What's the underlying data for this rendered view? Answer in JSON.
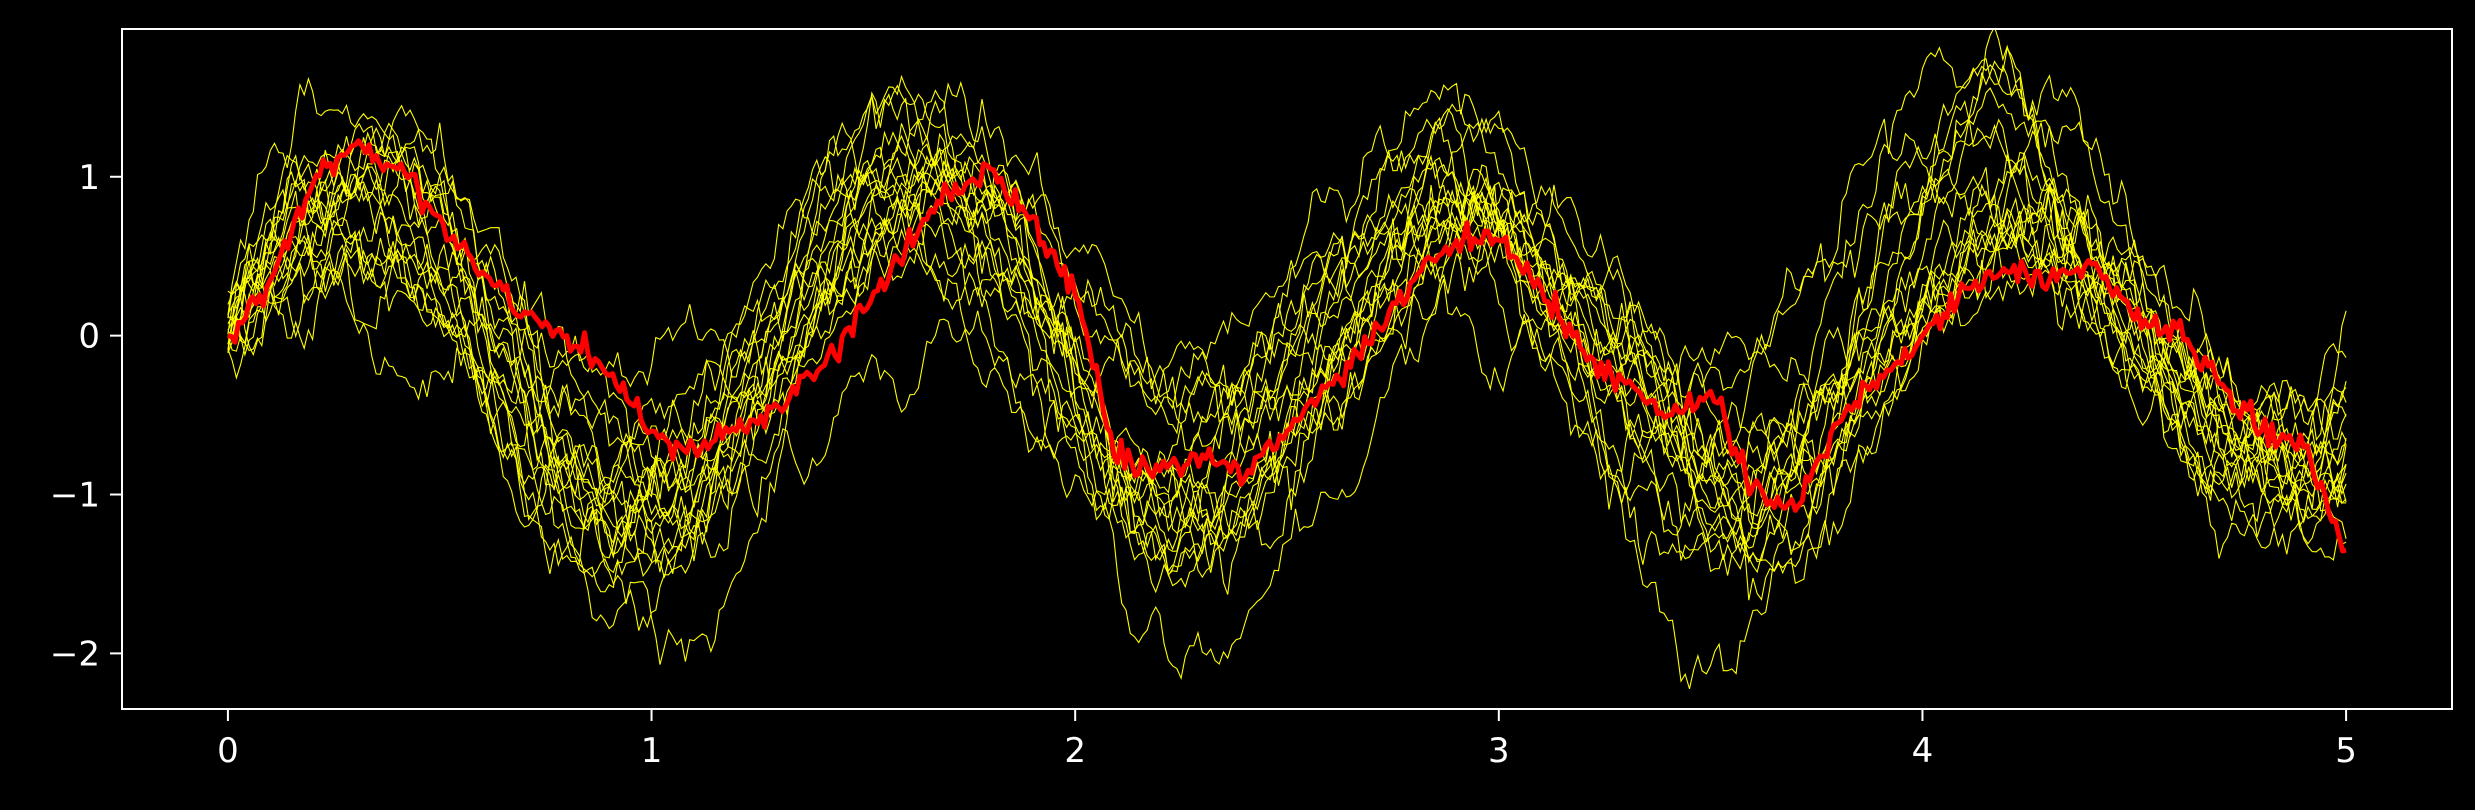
{
  "chart_data": {
    "type": "line",
    "title": "",
    "xlabel": "",
    "ylabel": "",
    "xlim": [
      -0.25,
      5.25
    ],
    "ylim": [
      -2.35,
      1.93
    ],
    "grid": false,
    "legend": "none",
    "x_ticks": [
      0,
      1,
      2,
      3,
      4,
      5
    ],
    "x_tick_labels": [
      "0",
      "1",
      "2",
      "3",
      "4",
      "5"
    ],
    "y_ticks": [
      1,
      0,
      -1,
      -2
    ],
    "y_tick_labels": [
      "1",
      "0",
      "−1",
      "−2"
    ],
    "colors": {
      "background": "#000000",
      "axes": "#ffffff",
      "ensemble": "#ffff00",
      "highlight": "#ff0000"
    },
    "ensemble": {
      "description": "20 noisy sinusoidal sample paths",
      "count": 20,
      "x_start": 0,
      "x_end": 5,
      "points": 500,
      "approx_mean": "sin(2*pi*t/1.3) with growing noise",
      "y_range_approx": [
        -2.15,
        1.72
      ]
    },
    "series": [
      {
        "x": [
          0,
          0.1,
          0.2,
          0.3,
          0.4,
          0.5,
          0.6,
          0.7,
          0.8,
          0.9,
          1.0,
          1.1,
          1.2,
          1.3,
          1.4,
          1.5,
          1.6,
          1.7,
          1.8,
          1.9,
          2.0,
          2.1,
          2.2,
          2.3,
          2.4,
          2.5,
          2.6,
          2.7,
          2.8,
          2.9,
          3.0,
          3.1,
          3.2,
          3.3,
          3.4,
          3.5,
          3.6,
          3.7,
          3.8,
          3.9,
          4.0,
          4.1,
          4.2,
          4.3,
          4.4,
          4.5,
          4.6,
          4.7,
          4.8,
          4.9,
          5.0
        ],
        "values": [
          0.0,
          0.35,
          0.95,
          1.2,
          1.05,
          0.75,
          0.4,
          0.15,
          0.0,
          -0.25,
          -0.6,
          -0.7,
          -0.6,
          -0.45,
          -0.2,
          0.15,
          0.55,
          0.9,
          1.05,
          0.75,
          0.25,
          -0.8,
          -0.85,
          -0.75,
          -0.9,
          -0.6,
          -0.3,
          -0.05,
          0.35,
          0.6,
          0.6,
          0.3,
          -0.1,
          -0.3,
          -0.5,
          -0.35,
          -0.95,
          -1.1,
          -0.55,
          -0.25,
          0.0,
          0.3,
          0.4,
          0.35,
          0.45,
          0.1,
          0.05,
          -0.3,
          -0.6,
          -0.7,
          -1.35
        ]
      }
    ]
  }
}
